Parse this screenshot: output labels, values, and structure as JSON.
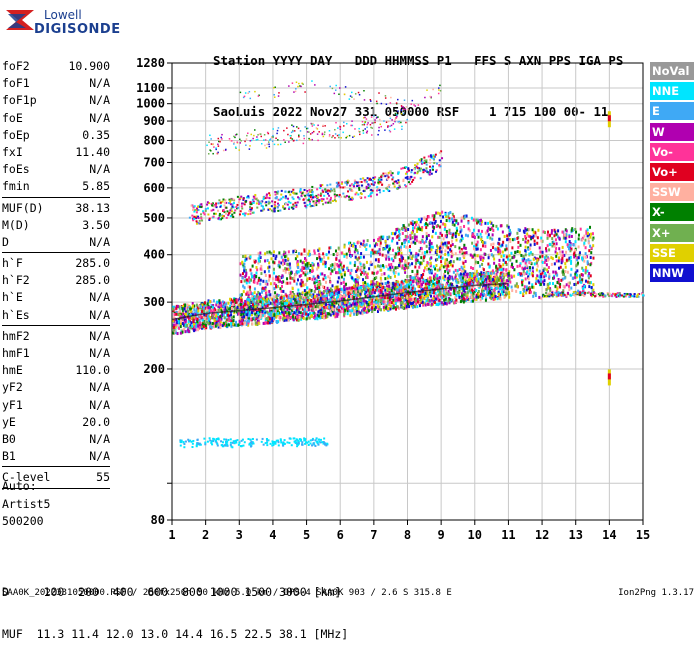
{
  "logo": {
    "line1": "Lowell",
    "line2": "DIGISONDE"
  },
  "header": {
    "line1": "Station YYYY DAY   DDD HHMMSS P1   FFS S AXN PPS IGA PS",
    "line2": "SaoLuis 2022 Nov27 331 050000 RSF    1 715 100 00- 11"
  },
  "params": {
    "group1": [
      {
        "label": "foF2",
        "value": "10.900"
      },
      {
        "label": "foF1",
        "value": "N/A"
      },
      {
        "label": "foF1p",
        "value": "N/A"
      },
      {
        "label": "foE",
        "value": "N/A"
      },
      {
        "label": "foEp",
        "value": "0.35"
      },
      {
        "label": "fxI",
        "value": "11.40"
      },
      {
        "label": "foEs",
        "value": "N/A"
      },
      {
        "label": "fmin",
        "value": "5.85"
      }
    ],
    "group2": [
      {
        "label": "MUF(D)",
        "value": "38.13"
      },
      {
        "label": "M(D)",
        "value": "3.50"
      },
      {
        "label": "D",
        "value": "N/A"
      }
    ],
    "group3": [
      {
        "label": "h`F",
        "value": "285.0"
      },
      {
        "label": "h`F2",
        "value": "285.0"
      },
      {
        "label": "h`E",
        "value": "N/A"
      },
      {
        "label": "h`Es",
        "value": "N/A"
      }
    ],
    "group4": [
      {
        "label": "hmF2",
        "value": "N/A"
      },
      {
        "label": "hmF1",
        "value": "N/A"
      },
      {
        "label": "hmE",
        "value": "110.0"
      },
      {
        "label": "yF2",
        "value": "N/A"
      },
      {
        "label": "yF1",
        "value": "N/A"
      },
      {
        "label": "yE",
        "value": "20.0"
      },
      {
        "label": "B0",
        "value": "N/A"
      },
      {
        "label": "B1",
        "value": "N/A"
      }
    ],
    "group5": [
      {
        "label": "C-level",
        "value": "55"
      }
    ]
  },
  "auto": {
    "line1": "Auto:",
    "line2": "Artist5",
    "line3": "500200"
  },
  "legend": [
    {
      "label": "NoVal",
      "color": "#999999"
    },
    {
      "label": "NNE",
      "color": "#00e5ff"
    },
    {
      "label": "E",
      "color": "#3fa9f5"
    },
    {
      "label": "W",
      "color": "#b000b0"
    },
    {
      "label": "Vo-",
      "color": "#ff3399"
    },
    {
      "label": "Vo+",
      "color": "#e00020"
    },
    {
      "label": "SSW",
      "color": "#ffb0a0"
    },
    {
      "label": "X-",
      "color": "#008000"
    },
    {
      "label": "X+",
      "color": "#70b050"
    },
    {
      "label": "SSE",
      "color": "#e0d000"
    },
    {
      "label": "NNW",
      "color": "#1010d0"
    }
  ],
  "chart_data": {
    "type": "scatter",
    "xlim": [
      1,
      15
    ],
    "ylim": [
      80,
      1280
    ],
    "y_scale": "log",
    "x_ticks": [
      "1",
      "2",
      "3",
      "4",
      "5",
      "6",
      "7",
      "8",
      "9",
      "10",
      "11",
      "12",
      "13",
      "14",
      "15"
    ],
    "y_ticks": [
      80,
      100,
      200,
      300,
      400,
      500,
      600,
      700,
      800,
      900,
      1000,
      1100,
      1280
    ],
    "y_tick_labels": [
      "80",
      "",
      "200",
      "300",
      "400",
      "500",
      "600",
      "700",
      "800",
      "900",
      "1000",
      "1100",
      "1280"
    ],
    "grid": true,
    "traces": [
      {
        "name": "E layer",
        "points": [
          [
            1.2,
            128
          ],
          [
            1.6,
            128
          ],
          [
            2.0,
            130
          ],
          [
            2.4,
            129
          ],
          [
            2.8,
            128
          ],
          [
            3.5,
            129
          ],
          [
            4.5,
            129
          ],
          [
            5.6,
            129
          ]
        ]
      },
      {
        "name": "F trace 1",
        "points": [
          [
            1.0,
            270
          ],
          [
            2.0,
            280
          ],
          [
            3.0,
            285
          ],
          [
            4.0,
            290
          ],
          [
            5.0,
            296
          ],
          [
            6.0,
            302
          ],
          [
            7.0,
            310
          ],
          [
            8.0,
            318
          ],
          [
            9.0,
            325
          ],
          [
            10.0,
            332
          ],
          [
            11.0,
            336
          ]
        ]
      },
      {
        "name": "F spread",
        "points": [
          [
            3.0,
            330
          ],
          [
            5.0,
            340
          ],
          [
            7.0,
            360
          ],
          [
            8.0,
            400
          ],
          [
            9.0,
            430
          ],
          [
            10.0,
            410
          ],
          [
            11.0,
            390
          ],
          [
            12.0,
            380
          ],
          [
            13.5,
            390
          ]
        ]
      },
      {
        "name": "F multihop 2",
        "points": [
          [
            1.5,
            510
          ],
          [
            3.0,
            540
          ],
          [
            5.0,
            570
          ],
          [
            7.0,
            610
          ],
          [
            8.0,
            650
          ],
          [
            9.0,
            720
          ]
        ]
      },
      {
        "name": "F multihop 3",
        "points": [
          [
            2.0,
            780
          ],
          [
            3.0,
            800
          ],
          [
            5.0,
            840
          ],
          [
            7.0,
            880
          ],
          [
            8.0,
            920
          ]
        ]
      },
      {
        "name": "F multihop 4",
        "points": [
          [
            3.0,
            1060
          ],
          [
            4.0,
            1080
          ],
          [
            5.0,
            1120
          ],
          [
            8.0,
            1000
          ],
          [
            9.0,
            1100
          ]
        ]
      },
      {
        "name": "Extraordinary",
        "points": [
          [
            12.0,
            315
          ],
          [
            13.0,
            318
          ],
          [
            14.0,
            315
          ],
          [
            15.0,
            315
          ]
        ]
      }
    ],
    "fixed_marks": [
      [
        14.0,
        910
      ],
      [
        14.0,
        190
      ]
    ]
  },
  "bottom": {
    "line1": "D     100  200  400  600  800 1000 1500 3000 [km]",
    "line2": "MUF  11.3 11.4 12.0 13.0 14.4 16.5 22.5 38.1 [MHz]"
  },
  "footer": {
    "left": "SAA0K_2022331050000.RSF / 280fx256h 50 kHz 5.0 km / DPS-4 SAA0K 903 / 2.6 S 315.8 E",
    "right": "Ion2Png 1.3.17"
  }
}
